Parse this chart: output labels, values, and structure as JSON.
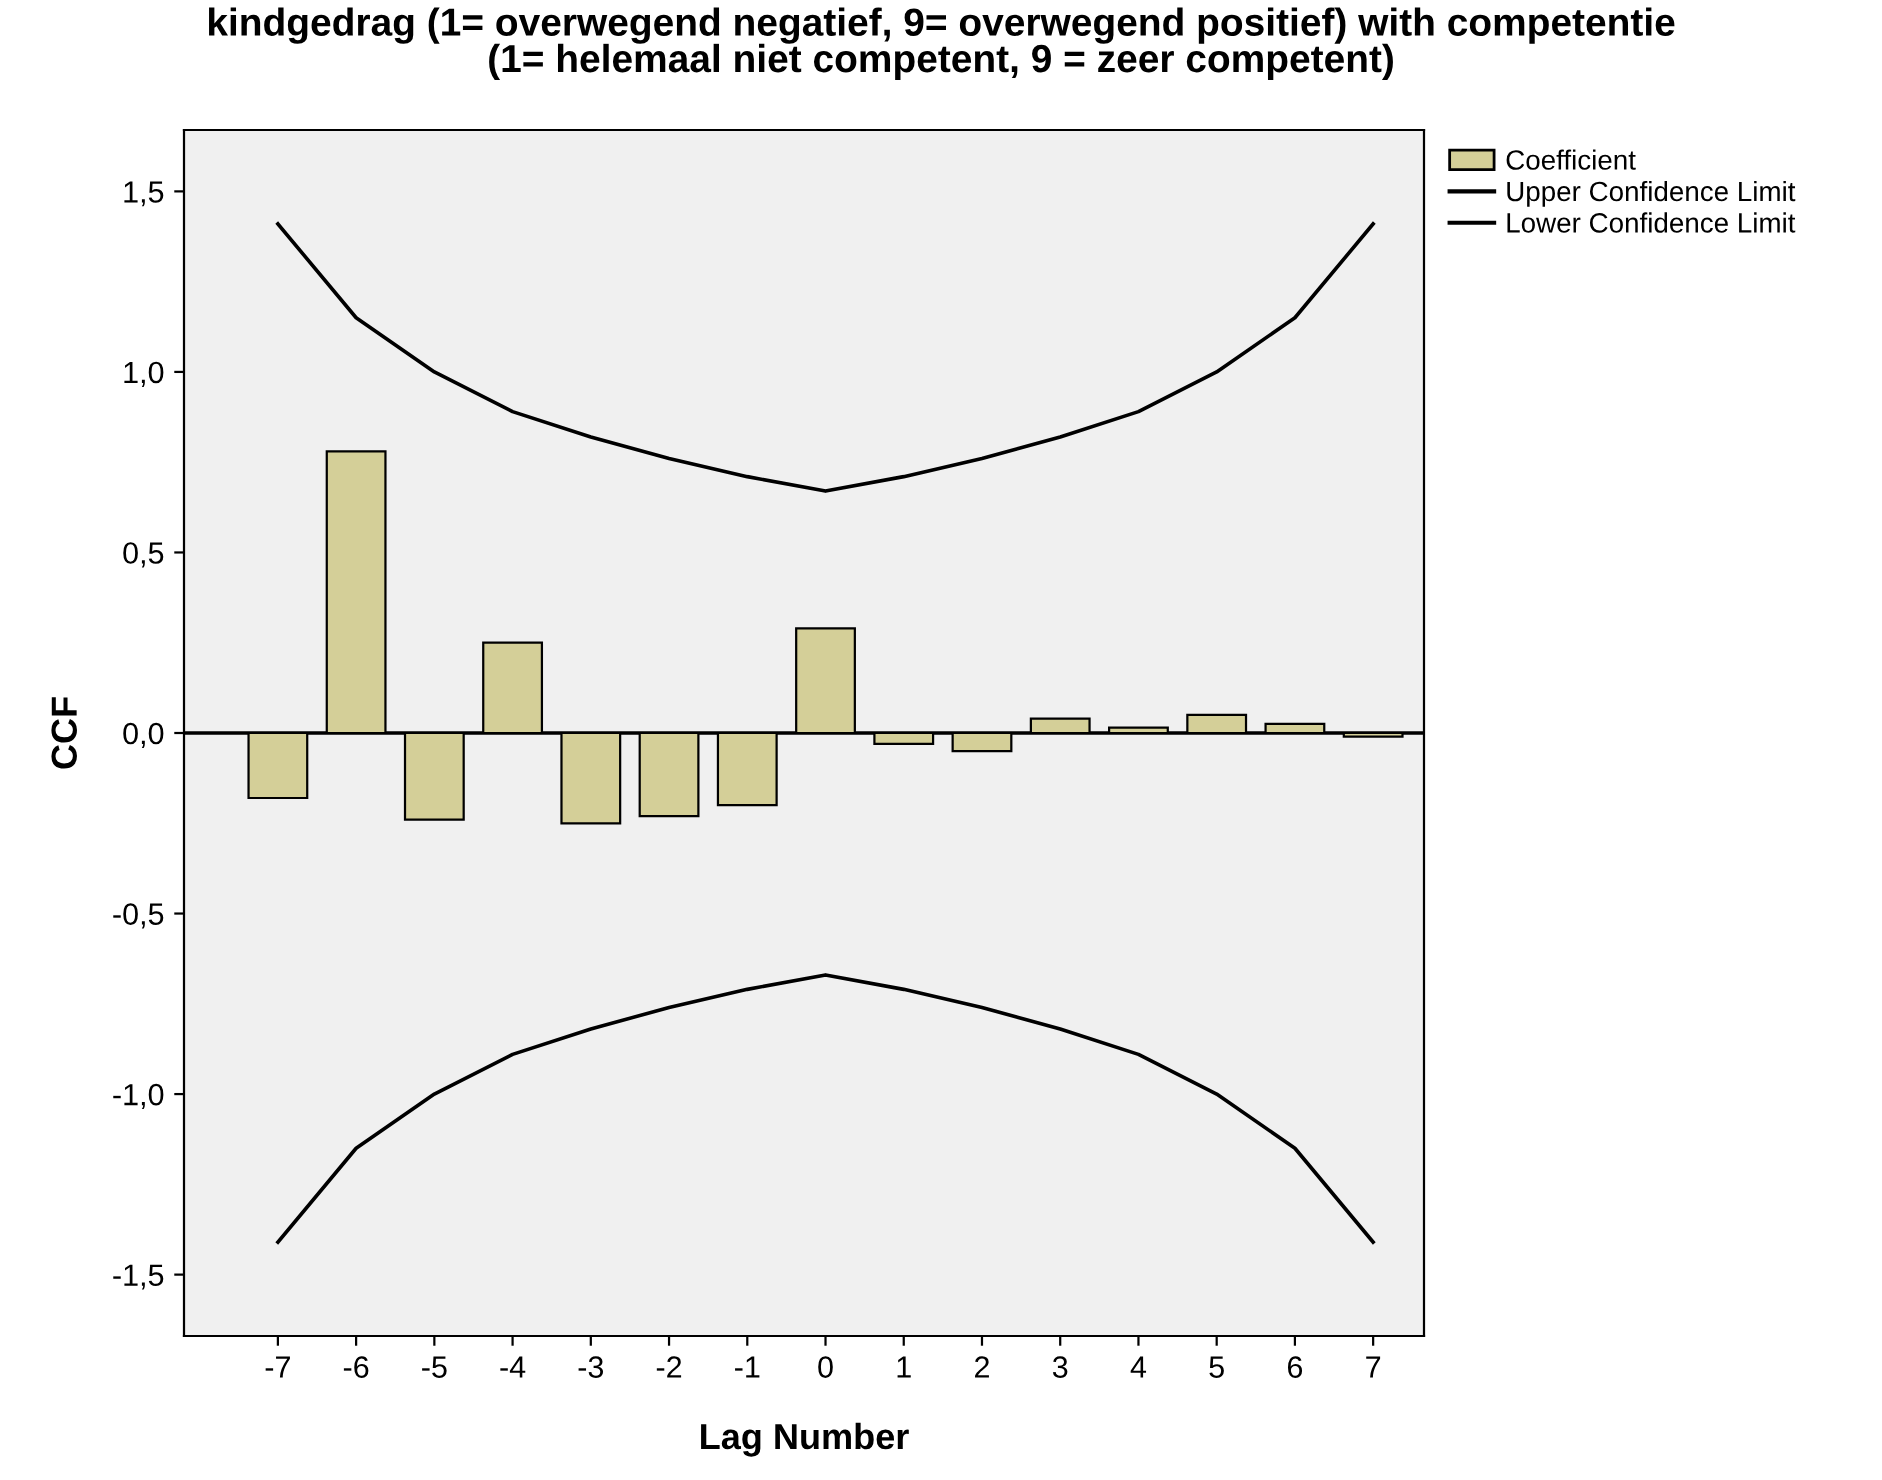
{
  "chart_data": {
    "type": "bar",
    "title": "kindgedrag (1= overwegend negatief, 9= overwegend positief) with competentie\n(1= helemaal niet competent, 9 = zeer competent)",
    "xlabel": "Lag Number",
    "ylabel": "CCF",
    "categories": [
      "-7",
      "-6",
      "-5",
      "-4",
      "-3",
      "-2",
      "-1",
      "0",
      "1",
      "2",
      "3",
      "4",
      "5",
      "6",
      "7"
    ],
    "series": [
      {
        "name": "Coefficient",
        "color": "#d4cf98",
        "values": [
          -0.18,
          0.78,
          -0.24,
          0.25,
          -0.25,
          -0.23,
          -0.2,
          0.29,
          -0.03,
          -0.05,
          0.04,
          0.015,
          0.05,
          0.025,
          -0.01
        ]
      },
      {
        "name": "Upper Confidence Limit",
        "type": "line",
        "color": "#000000",
        "values": [
          1.41,
          1.15,
          1.0,
          0.89,
          0.82,
          0.76,
          0.71,
          0.67,
          0.71,
          0.76,
          0.82,
          0.89,
          1.0,
          1.15,
          1.41
        ]
      },
      {
        "name": "Lower Confidence Limit",
        "type": "line",
        "color": "#000000",
        "values": [
          -1.41,
          -1.15,
          -1.0,
          -0.89,
          -0.82,
          -0.76,
          -0.71,
          -0.67,
          -0.71,
          -0.76,
          -0.82,
          -0.89,
          -1.0,
          -1.15,
          -1.41
        ]
      }
    ],
    "ylim": [
      -1.67,
      1.67
    ],
    "yticks": [
      {
        "value": -1.5,
        "label": "-1,5"
      },
      {
        "value": -1.0,
        "label": "-1,0"
      },
      {
        "value": -0.5,
        "label": "-0,5"
      },
      {
        "value": 0.0,
        "label": "0,0"
      },
      {
        "value": 0.5,
        "label": "0,5"
      },
      {
        "value": 1.0,
        "label": "1,0"
      },
      {
        "value": 1.5,
        "label": "1,5"
      }
    ],
    "ref_lines": [
      {
        "axis": "y",
        "value": 0,
        "color": "#000000"
      }
    ],
    "grid": false,
    "legend": "top right",
    "marker": "none",
    "line_style": "solid"
  }
}
